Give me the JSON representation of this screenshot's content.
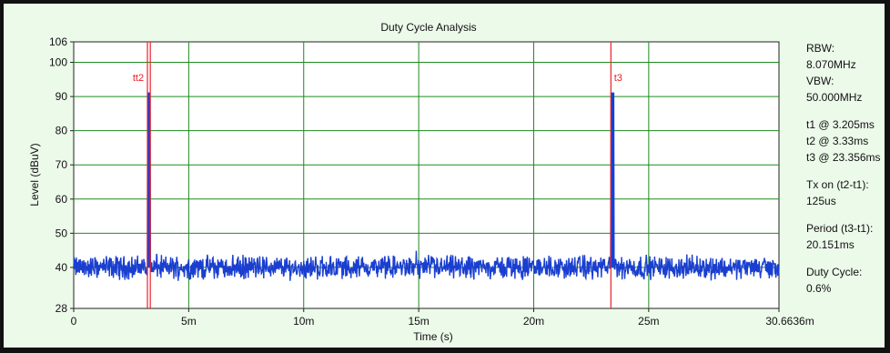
{
  "chart_data": {
    "type": "line",
    "title": "Duty Cycle Analysis",
    "xlabel": "Time (s)",
    "ylabel": "Level (dBuV)",
    "xlim": [
      0,
      30.6636
    ],
    "ylim": [
      28,
      106
    ],
    "x_ticks": [
      {
        "value": 0,
        "label": "0"
      },
      {
        "value": 5,
        "label": "5m"
      },
      {
        "value": 10,
        "label": "10m"
      },
      {
        "value": 15,
        "label": "15m"
      },
      {
        "value": 20,
        "label": "20m"
      },
      {
        "value": 25,
        "label": "25m"
      },
      {
        "value": 30.6636,
        "label": "30.6636m"
      }
    ],
    "y_ticks": [
      {
        "value": 28,
        "label": "28"
      },
      {
        "value": 40,
        "label": "40"
      },
      {
        "value": 50,
        "label": "50"
      },
      {
        "value": 60,
        "label": "60"
      },
      {
        "value": 70,
        "label": "70"
      },
      {
        "value": 80,
        "label": "80"
      },
      {
        "value": 90,
        "label": "90"
      },
      {
        "value": 100,
        "label": "100"
      },
      {
        "value": 106,
        "label": "106"
      }
    ],
    "grid": true,
    "series_color": "#1a3fd0",
    "noise_floor": 40,
    "pulses": [
      {
        "start": 3.205,
        "end": 3.33,
        "level": 91
      },
      {
        "start": 23.356,
        "end": 23.481,
        "level": 91
      }
    ],
    "markers": [
      {
        "label": "tt2",
        "x": 3.205
      },
      {
        "label": "",
        "x": 3.33
      },
      {
        "label": "t3",
        "x": 23.356
      }
    ],
    "marker_color": "#e8202a",
    "grid_color": "#1e8a1e"
  },
  "side_panel": [
    {
      "lines": [
        "RBW:",
        "8.070MHz",
        "VBW:",
        "50.000MHz"
      ]
    },
    {
      "lines": [
        "t1 @ 3.205ms",
        "t2 @ 3.33ms",
        "t3 @ 23.356ms"
      ]
    },
    {
      "lines": [
        "Tx on (t2-t1):",
        "125us"
      ]
    },
    {
      "lines": [
        "Period (t3-t1):",
        "20.151ms"
      ]
    },
    {
      "lines": [
        "Duty Cycle:",
        "0.6%"
      ]
    }
  ]
}
